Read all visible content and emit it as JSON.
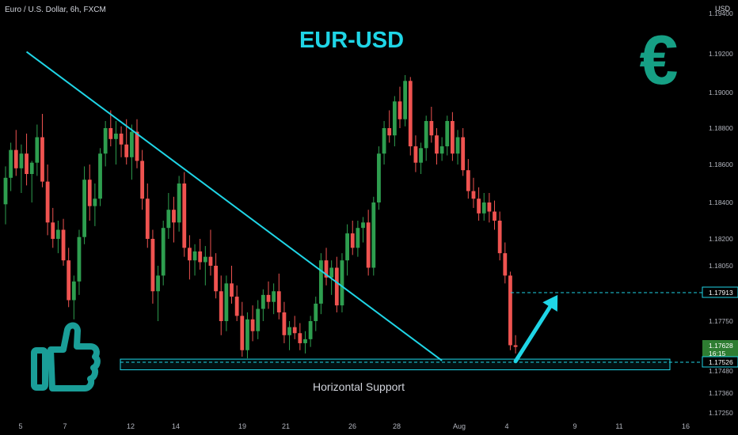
{
  "header": {
    "symbol_line": "Euro / U.S. Dollar, 6h, FXCM",
    "currency": "USD"
  },
  "colors": {
    "bull": "#26a69a",
    "bullBright": "#2e9e4f",
    "bear": "#ef5350",
    "trend": "#1fd5e6",
    "axisText": "#b2b5be",
    "price_box_current": "#2e7d32"
  },
  "chart_data": {
    "type": "candlestick",
    "title": "EUR-USD",
    "symbol": "Euro / U.S. Dollar",
    "timeframe": "6h",
    "source": "FXCM",
    "y_axis_unit": "USD",
    "y_ticks": [
      "1.19400",
      "1.19200",
      "1.19000",
      "1.18800",
      "1.18600",
      "1.18400",
      "1.18200",
      "1.18050",
      "1.17913",
      "1.17750",
      "1.17628",
      "1.17526",
      "1.17480",
      "1.17360",
      "1.17250"
    ],
    "x_ticks": [
      "5",
      "7",
      "12",
      "14",
      "19",
      "21",
      "26",
      "28",
      "Aug",
      "4",
      "9",
      "11",
      "16"
    ],
    "price_labels": [
      {
        "value": "1.17913",
        "kind": "target"
      },
      {
        "value": "1.17628",
        "countdown": "16:15",
        "kind": "current"
      },
      {
        "value": "1.17526",
        "kind": "support"
      }
    ],
    "annotations": {
      "support_label": "Horizontal Support",
      "currency_symbol": "€"
    },
    "candles": [
      [
        1.1839,
        1.1859,
        1.1828,
        1.1853
      ],
      [
        1.1853,
        1.1872,
        1.1846,
        1.1868
      ],
      [
        1.1868,
        1.1879,
        1.1854,
        1.1858
      ],
      [
        1.1858,
        1.1871,
        1.1845,
        1.1866
      ],
      [
        1.1866,
        1.1877,
        1.1849,
        1.1855
      ],
      [
        1.1855,
        1.1862,
        1.184,
        1.1861
      ],
      [
        1.1861,
        1.1882,
        1.1854,
        1.1875
      ],
      [
        1.1875,
        1.1888,
        1.1848,
        1.1851
      ],
      [
        1.1851,
        1.186,
        1.1822,
        1.1829
      ],
      [
        1.1829,
        1.1837,
        1.1815,
        1.182
      ],
      [
        1.182,
        1.183,
        1.1812,
        1.1825
      ],
      [
        1.1825,
        1.1831,
        1.1805,
        1.1808
      ],
      [
        1.1808,
        1.1815,
        1.1783,
        1.1787
      ],
      [
        1.1787,
        1.18,
        1.1776,
        1.1797
      ],
      [
        1.1797,
        1.1825,
        1.179,
        1.1821
      ],
      [
        1.1821,
        1.1859,
        1.1817,
        1.1852
      ],
      [
        1.1852,
        1.186,
        1.183,
        1.1838
      ],
      [
        1.1838,
        1.185,
        1.1827,
        1.1842
      ],
      [
        1.1842,
        1.1869,
        1.1838,
        1.1866
      ],
      [
        1.1866,
        1.1884,
        1.1859,
        1.188
      ],
      [
        1.188,
        1.189,
        1.187,
        1.1874
      ],
      [
        1.1874,
        1.1884,
        1.186,
        1.1877
      ],
      [
        1.1877,
        1.1881,
        1.1864,
        1.1871
      ],
      [
        1.1871,
        1.1885,
        1.186,
        1.1864
      ],
      [
        1.1864,
        1.1882,
        1.1852,
        1.1878
      ],
      [
        1.1878,
        1.1885,
        1.1858,
        1.1862
      ],
      [
        1.1862,
        1.1868,
        1.1836,
        1.1842
      ],
      [
        1.1842,
        1.185,
        1.1815,
        1.182
      ],
      [
        1.182,
        1.1825,
        1.1785,
        1.1792
      ],
      [
        1.1792,
        1.1805,
        1.1775,
        1.18
      ],
      [
        1.18,
        1.183,
        1.1795,
        1.1826
      ],
      [
        1.1826,
        1.1845,
        1.182,
        1.1836
      ],
      [
        1.1836,
        1.1843,
        1.1818,
        1.1829
      ],
      [
        1.1829,
        1.1854,
        1.1824,
        1.185
      ],
      [
        1.185,
        1.1856,
        1.181,
        1.1815
      ],
      [
        1.1815,
        1.1822,
        1.1798,
        1.1808
      ],
      [
        1.1808,
        1.1817,
        1.18,
        1.1813
      ],
      [
        1.1813,
        1.182,
        1.1803,
        1.1807
      ],
      [
        1.1807,
        1.1816,
        1.1795,
        1.181
      ],
      [
        1.181,
        1.1825,
        1.18,
        1.1805
      ],
      [
        1.1805,
        1.1812,
        1.1788,
        1.1792
      ],
      [
        1.1792,
        1.18,
        1.1768,
        1.1775
      ],
      [
        1.1775,
        1.18,
        1.177,
        1.1796
      ],
      [
        1.1796,
        1.1805,
        1.1785,
        1.1789
      ],
      [
        1.1789,
        1.1795,
        1.1775,
        1.1778
      ],
      [
        1.1778,
        1.1786,
        1.1756,
        1.176
      ],
      [
        1.176,
        1.178,
        1.1755,
        1.1776
      ],
      [
        1.1776,
        1.1784,
        1.1765,
        1.177
      ],
      [
        1.177,
        1.1787,
        1.1766,
        1.1782
      ],
      [
        1.1782,
        1.1793,
        1.1775,
        1.179
      ],
      [
        1.179,
        1.1797,
        1.1782,
        1.1786
      ],
      [
        1.1786,
        1.1796,
        1.1779,
        1.1792
      ],
      [
        1.1792,
        1.1801,
        1.1776,
        1.178
      ],
      [
        1.178,
        1.1786,
        1.1764,
        1.1768
      ],
      [
        1.1768,
        1.1775,
        1.176,
        1.1772
      ],
      [
        1.1772,
        1.1778,
        1.1766,
        1.1769
      ],
      [
        1.1769,
        1.1774,
        1.176,
        1.1764
      ],
      [
        1.1764,
        1.177,
        1.1758,
        1.1766
      ],
      [
        1.1766,
        1.1778,
        1.1762,
        1.1775
      ],
      [
        1.1775,
        1.1789,
        1.177,
        1.1785
      ],
      [
        1.1785,
        1.1812,
        1.1779,
        1.1808
      ],
      [
        1.1808,
        1.1815,
        1.1795,
        1.1799
      ],
      [
        1.1799,
        1.1808,
        1.179,
        1.1804
      ],
      [
        1.1804,
        1.181,
        1.178,
        1.1784
      ],
      [
        1.1784,
        1.1812,
        1.178,
        1.1808
      ],
      [
        1.1808,
        1.1828,
        1.18,
        1.1823
      ],
      [
        1.1823,
        1.183,
        1.1811,
        1.1815
      ],
      [
        1.1815,
        1.183,
        1.181,
        1.1826
      ],
      [
        1.1826,
        1.1832,
        1.1818,
        1.1829
      ],
      [
        1.1829,
        1.1836,
        1.18,
        1.1804
      ],
      [
        1.1804,
        1.1843,
        1.18,
        1.184
      ],
      [
        1.184,
        1.187,
        1.1836,
        1.1866
      ],
      [
        1.1866,
        1.1884,
        1.186,
        1.188
      ],
      [
        1.188,
        1.189,
        1.1872,
        1.1876
      ],
      [
        1.1876,
        1.1898,
        1.187,
        1.1895
      ],
      [
        1.1895,
        1.1903,
        1.188,
        1.1885
      ],
      [
        1.1885,
        1.1909,
        1.1881,
        1.1906
      ],
      [
        1.1906,
        1.1908,
        1.1865,
        1.187
      ],
      [
        1.187,
        1.1876,
        1.1856,
        1.1861
      ],
      [
        1.1861,
        1.1872,
        1.1855,
        1.1869
      ],
      [
        1.1869,
        1.1887,
        1.1862,
        1.1884
      ],
      [
        1.1884,
        1.1892,
        1.1872,
        1.1876
      ],
      [
        1.1876,
        1.188,
        1.186,
        1.1866
      ],
      [
        1.1866,
        1.1875,
        1.1862,
        1.187
      ],
      [
        1.187,
        1.1887,
        1.1865,
        1.1884
      ],
      [
        1.1884,
        1.1889,
        1.1862,
        1.1866
      ],
      [
        1.1866,
        1.1879,
        1.186,
        1.1875
      ],
      [
        1.1875,
        1.188,
        1.1854,
        1.1857
      ],
      [
        1.1857,
        1.1863,
        1.1842,
        1.1846
      ],
      [
        1.1846,
        1.1853,
        1.1837,
        1.1842
      ],
      [
        1.1842,
        1.1848,
        1.183,
        1.1834
      ],
      [
        1.1834,
        1.1845,
        1.183,
        1.184
      ],
      [
        1.184,
        1.1845,
        1.1829,
        1.1835
      ],
      [
        1.1835,
        1.1841,
        1.1825,
        1.183
      ],
      [
        1.183,
        1.1835,
        1.1808,
        1.1812
      ],
      [
        1.1812,
        1.1818,
        1.1796,
        1.18
      ],
      [
        1.18,
        1.1802,
        1.176,
        1.1763
      ],
      [
        1.1763,
        1.1768,
        1.1758,
        1.1762
      ]
    ],
    "trendline": {
      "from": {
        "candle": 4,
        "price": 1.1921
      },
      "to": {
        "candle": 83,
        "price": 1.17536
      }
    },
    "support_zone": {
      "top": 1.17545,
      "bottom": 1.17486,
      "level": 1.17526
    },
    "target_level": 1.17913,
    "arrow": {
      "from": {
        "candle": 97,
        "price": 1.17532
      },
      "to": {
        "candle": 105,
        "price": 1.179
      }
    }
  }
}
